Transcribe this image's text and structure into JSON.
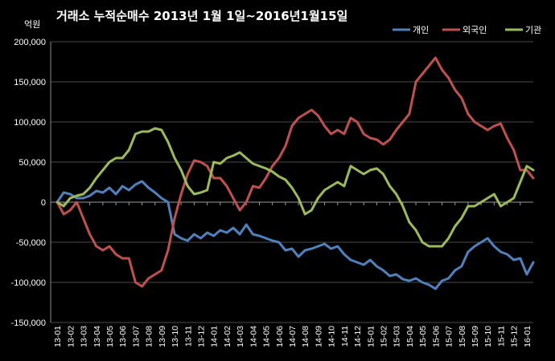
{
  "chart_data": {
    "type": "line",
    "title": "거래소 누적순매수 2013년 1월 1일~2016년1월15일",
    "ylabel": "억원",
    "xlabel": "",
    "ylim": [
      -150000,
      200000
    ],
    "yticks": [
      -150000,
      -100000,
      -50000,
      0,
      50000,
      100000,
      150000,
      200000
    ],
    "ytick_labels": [
      "-150,000",
      "-100,000",
      "-50,000",
      "0",
      "50,000",
      "100,000",
      "150,000",
      "200,000"
    ],
    "categories": [
      "13-01",
      "13-02",
      "13-03",
      "13-04",
      "13-05",
      "13-06",
      "13-07",
      "13-08",
      "13-09",
      "13-10",
      "13-11",
      "13-12",
      "14-01",
      "14-02",
      "14-03",
      "14-04",
      "14-05",
      "14-06",
      "14-07",
      "14-08",
      "14-09",
      "14-10",
      "14-11",
      "14-12",
      "15-01",
      "15-02",
      "15-03",
      "15-04",
      "15-05",
      "15-06",
      "15-07",
      "15-08",
      "15-09",
      "15-10",
      "15-11",
      "15-12",
      "16-01"
    ],
    "grid": true,
    "legend_position": "top-right",
    "series": [
      {
        "name": "개인",
        "color": "#4f81bd",
        "x": [
          0,
          0.5,
          1,
          1.5,
          2,
          2.5,
          3,
          3.5,
          4,
          4.5,
          5,
          5.5,
          6,
          6.5,
          7,
          7.5,
          8,
          8.5,
          9,
          9.5,
          10,
          10.5,
          11,
          11.5,
          12,
          12.5,
          13,
          13.5,
          14,
          14.5,
          15,
          15.5,
          16,
          16.5,
          17,
          17.5,
          18,
          18.5,
          19,
          19.5,
          20,
          20.5,
          21,
          21.5,
          22,
          22.5,
          23,
          23.5,
          24,
          24.5,
          25,
          25.5,
          26,
          26.5,
          27,
          27.5,
          28,
          28.5,
          29,
          29.5,
          30,
          30.5,
          31,
          31.5,
          32,
          32.5,
          33,
          33.5,
          34,
          34.5,
          35,
          35.5,
          36,
          36.5
        ],
        "values": [
          0,
          12000,
          10000,
          5000,
          5000,
          8000,
          14000,
          12000,
          18000,
          10000,
          20000,
          15000,
          22000,
          26000,
          18000,
          12000,
          5000,
          0,
          -40000,
          -45000,
          -48000,
          -40000,
          -45000,
          -38000,
          -42000,
          -35000,
          -38000,
          -32000,
          -40000,
          -28000,
          -40000,
          -42000,
          -45000,
          -48000,
          -50000,
          -60000,
          -58000,
          -68000,
          -60000,
          -58000,
          -55000,
          -52000,
          -58000,
          -55000,
          -65000,
          -72000,
          -75000,
          -78000,
          -72000,
          -80000,
          -85000,
          -92000,
          -90000,
          -96000,
          -98000,
          -95000,
          -100000,
          -103000,
          -108000,
          -98000,
          -95000,
          -85000,
          -80000,
          -62000,
          -55000,
          -50000,
          -45000,
          -55000,
          -62000,
          -65000,
          -72000,
          -70000,
          -90000,
          -75000
        ]
      },
      {
        "name": "외국인",
        "color": "#c0504d",
        "x": [
          0,
          0.5,
          1,
          1.5,
          2,
          2.5,
          3,
          3.5,
          4,
          4.5,
          5,
          5.5,
          6,
          6.5,
          7,
          7.5,
          8,
          8.5,
          9,
          9.5,
          10,
          10.5,
          11,
          11.5,
          12,
          12.5,
          13,
          13.5,
          14,
          14.5,
          15,
          15.5,
          16,
          16.5,
          17,
          17.5,
          18,
          18.5,
          19,
          19.5,
          20,
          20.5,
          21,
          21.5,
          22,
          22.5,
          23,
          23.5,
          24,
          24.5,
          25,
          25.5,
          26,
          26.5,
          27,
          27.5,
          28,
          28.5,
          29,
          29.5,
          30,
          30.5,
          31,
          31.5,
          32,
          32.5,
          33,
          33.5,
          34,
          34.5,
          35,
          35.5,
          36,
          36.5
        ],
        "values": [
          0,
          -15000,
          -10000,
          0,
          -20000,
          -40000,
          -55000,
          -60000,
          -55000,
          -65000,
          -70000,
          -70000,
          -100000,
          -105000,
          -95000,
          -90000,
          -85000,
          -60000,
          -20000,
          10000,
          35000,
          52000,
          50000,
          45000,
          30000,
          30000,
          20000,
          5000,
          -10000,
          0,
          20000,
          18000,
          30000,
          45000,
          55000,
          70000,
          95000,
          105000,
          110000,
          115000,
          108000,
          95000,
          85000,
          90000,
          85000,
          105000,
          100000,
          85000,
          80000,
          78000,
          72000,
          78000,
          90000,
          100000,
          110000,
          150000,
          160000,
          170000,
          180000,
          165000,
          155000,
          140000,
          130000,
          110000,
          100000,
          95000,
          90000,
          95000,
          98000,
          80000,
          65000,
          40000,
          40000,
          30000
        ]
      },
      {
        "name": "기관",
        "color": "#9bbb59",
        "x": [
          0,
          0.5,
          1,
          1.5,
          2,
          2.5,
          3,
          3.5,
          4,
          4.5,
          5,
          5.5,
          6,
          6.5,
          7,
          7.5,
          8,
          8.5,
          9,
          9.5,
          10,
          10.5,
          11,
          11.5,
          12,
          12.5,
          13,
          13.5,
          14,
          14.5,
          15,
          15.5,
          16,
          16.5,
          17,
          17.5,
          18,
          18.5,
          19,
          19.5,
          20,
          20.5,
          21,
          21.5,
          22,
          22.5,
          23,
          23.5,
          24,
          24.5,
          25,
          25.5,
          26,
          26.5,
          27,
          27.5,
          28,
          28.5,
          29,
          29.5,
          30,
          30.5,
          31,
          31.5,
          32,
          32.5,
          33,
          33.5,
          34,
          34.5,
          35,
          35.5,
          36,
          36.5
        ],
        "values": [
          0,
          -5000,
          5000,
          8000,
          10000,
          18000,
          30000,
          40000,
          50000,
          55000,
          55000,
          65000,
          85000,
          88000,
          88000,
          92000,
          90000,
          75000,
          55000,
          40000,
          20000,
          10000,
          12000,
          15000,
          50000,
          48000,
          55000,
          58000,
          62000,
          55000,
          48000,
          45000,
          42000,
          38000,
          32000,
          28000,
          18000,
          5000,
          -15000,
          -10000,
          5000,
          15000,
          20000,
          25000,
          20000,
          45000,
          40000,
          35000,
          40000,
          42000,
          35000,
          20000,
          10000,
          -5000,
          -25000,
          -35000,
          -50000,
          -55000,
          -55000,
          -55000,
          -45000,
          -30000,
          -20000,
          -5000,
          -5000,
          0,
          5000,
          10000,
          -5000,
          0,
          5000,
          25000,
          45000,
          40000
        ]
      }
    ]
  }
}
